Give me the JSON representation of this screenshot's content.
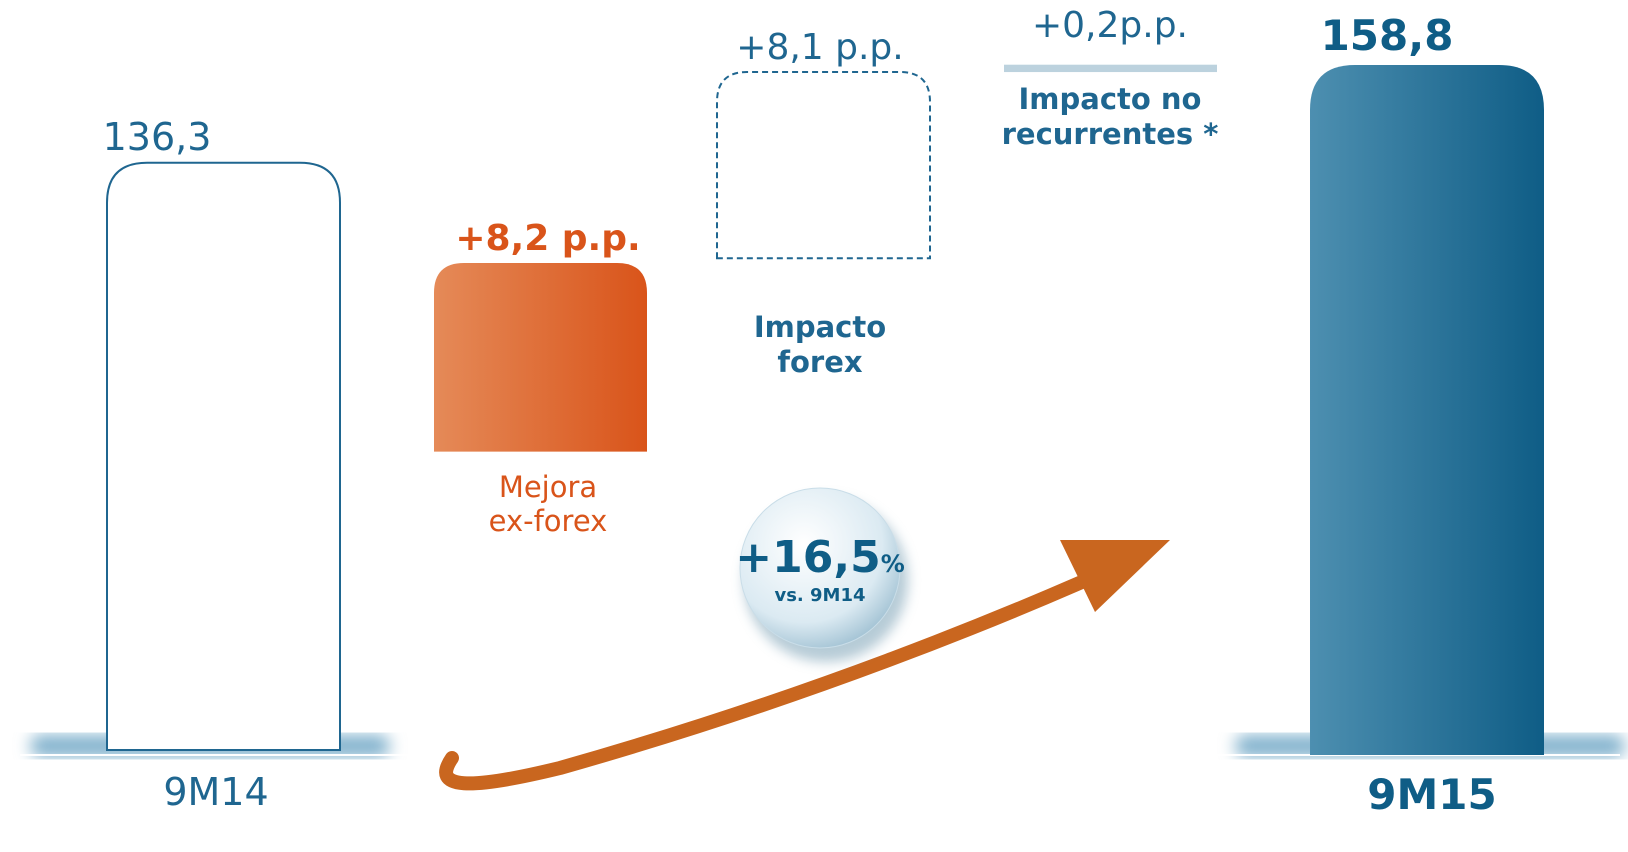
{
  "chart_data": {
    "type": "waterfall",
    "categories": [
      "9M14",
      "Mejora ex-forex",
      "Impacto forex",
      "Impacto no recurrentes *",
      "9M15"
    ],
    "values": [
      136.3,
      8.2,
      8.1,
      0.2,
      158.8
    ],
    "value_labels": [
      "136,3",
      "+8,2 p.p.",
      "+8,1 p.p.",
      "+0,2p.p.",
      "158,8"
    ],
    "colors": [
      "#1f6690",
      "#d9541a",
      "#1f6690",
      "#bcd2de",
      "#0f5d86"
    ],
    "growth_label": "+16,5",
    "growth_unit": "%",
    "growth_note": "vs. 9M14"
  }
}
